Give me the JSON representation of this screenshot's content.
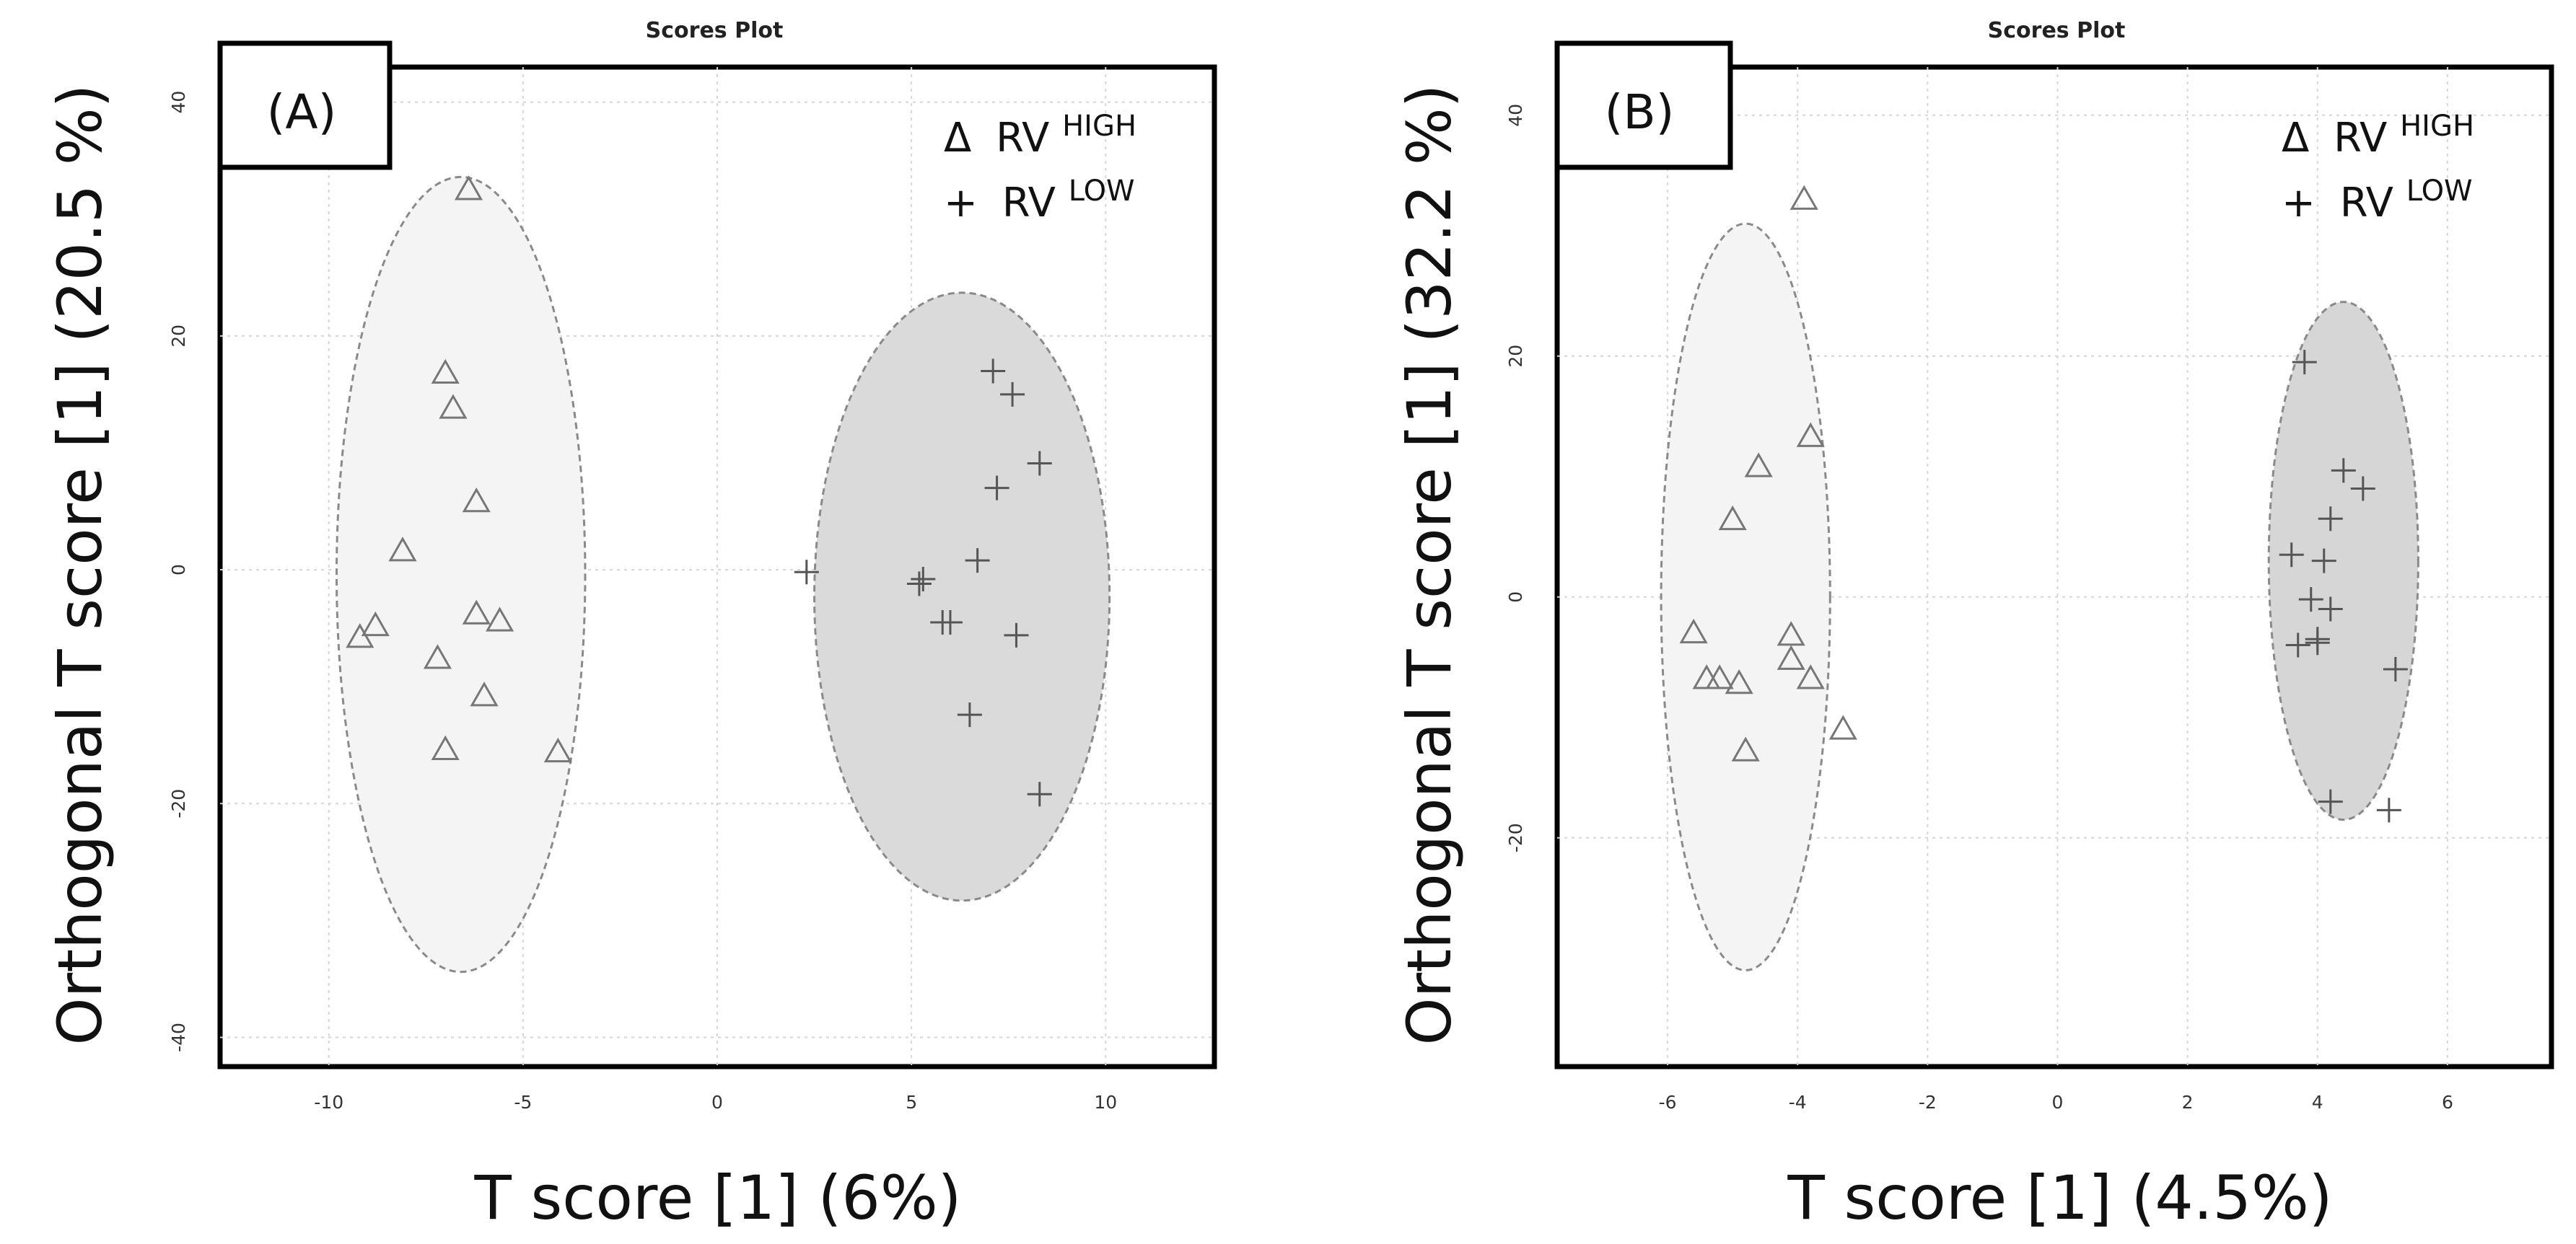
{
  "chart_data": [
    {
      "type": "scatter",
      "panel_label": "(A)",
      "title": "Scores Plot",
      "xlabel": "T score [1] (6%)",
      "ylabel": "Orthogonal T score [1] (20.5 %)",
      "xlim": [
        -12.8,
        12.8
      ],
      "ylim": [
        -42.5,
        43
      ],
      "xticks": [
        -10,
        -5,
        0,
        5,
        10
      ],
      "yticks": [
        -40,
        -20,
        0,
        20,
        40
      ],
      "legend": [
        {
          "marker": "Δ",
          "label": "RV",
          "sup": "HIGH"
        },
        {
          "marker": "+",
          "label": "RV",
          "sup": "LOW"
        }
      ],
      "series": [
        {
          "name": "RV HIGH",
          "marker": "triangle",
          "points": [
            [
              -6.4,
              32.5
            ],
            [
              -7.0,
              16.8
            ],
            [
              -6.8,
              13.8
            ],
            [
              -6.2,
              5.8
            ],
            [
              -8.1,
              1.6
            ],
            [
              -9.2,
              -5.8
            ],
            [
              -8.8,
              -4.8
            ],
            [
              -6.2,
              -3.8
            ],
            [
              -5.6,
              -4.4
            ],
            [
              -7.2,
              -7.6
            ],
            [
              -6.0,
              -10.8
            ],
            [
              -7.0,
              -15.4
            ],
            [
              -4.1,
              -15.6
            ]
          ],
          "ellipse": {
            "cx": -6.6,
            "cy": -0.4,
            "rx": 3.2,
            "ry": 34.0,
            "fill": "#f4f4f4"
          }
        },
        {
          "name": "RV LOW",
          "marker": "plus",
          "points": [
            [
              7.1,
              17.0
            ],
            [
              7.6,
              15.0
            ],
            [
              8.3,
              9.1
            ],
            [
              7.2,
              7.0
            ],
            [
              2.3,
              -0.2
            ],
            [
              5.2,
              -1.2
            ],
            [
              5.3,
              -0.8
            ],
            [
              6.7,
              0.8
            ],
            [
              5.8,
              -4.5
            ],
            [
              6.0,
              -4.5
            ],
            [
              7.7,
              -5.6
            ],
            [
              6.5,
              -12.4
            ],
            [
              8.3,
              -19.2
            ]
          ],
          "ellipse": {
            "cx": 6.3,
            "cy": -2.3,
            "rx": 3.8,
            "ry": 26.0,
            "fill": "#dadada"
          }
        }
      ]
    },
    {
      "type": "scatter",
      "panel_label": "(B)",
      "title": "Scores Plot",
      "xlabel": "T score [1] (4.5%)",
      "ylabel": "Orthogonal T score [1] (32.2 %)",
      "xlim": [
        -7.7,
        7.6
      ],
      "ylim": [
        -39,
        44
      ],
      "xticks": [
        -6,
        -4,
        -2,
        0,
        2,
        4,
        6
      ],
      "yticks": [
        -20,
        0,
        20,
        40
      ],
      "legend": [
        {
          "marker": "Δ",
          "label": "RV",
          "sup": "HIGH"
        },
        {
          "marker": "+",
          "label": "RV",
          "sup": "LOW"
        }
      ],
      "series": [
        {
          "name": "RV HIGH",
          "marker": "triangle",
          "points": [
            [
              -3.9,
              33.0
            ],
            [
              -3.8,
              13.3
            ],
            [
              -4.6,
              10.8
            ],
            [
              -5.0,
              6.4
            ],
            [
              -5.6,
              -3.0
            ],
            [
              -4.1,
              -3.2
            ],
            [
              -5.4,
              -6.8
            ],
            [
              -5.2,
              -6.8
            ],
            [
              -4.9,
              -7.2
            ],
            [
              -4.1,
              -5.2
            ],
            [
              -3.8,
              -6.8
            ],
            [
              -4.8,
              -12.8
            ],
            [
              -3.3,
              -11.0
            ]
          ],
          "ellipse": {
            "cx": -4.8,
            "cy": 0.0,
            "rx": 1.3,
            "ry": 31.0,
            "fill": "#f4f4f4"
          }
        },
        {
          "name": "RV LOW",
          "marker": "plus",
          "points": [
            [
              3.8,
              19.5
            ],
            [
              4.4,
              10.5
            ],
            [
              4.7,
              9.0
            ],
            [
              4.2,
              6.5
            ],
            [
              3.6,
              3.5
            ],
            [
              4.1,
              3.0
            ],
            [
              3.9,
              -0.2
            ],
            [
              4.2,
              -1.0
            ],
            [
              4.0,
              -3.5
            ],
            [
              3.7,
              -4.0
            ],
            [
              4.0,
              -3.8
            ],
            [
              5.2,
              -6.0
            ],
            [
              4.2,
              -17.0
            ],
            [
              5.1,
              -17.7
            ]
          ],
          "ellipse": {
            "cx": 4.4,
            "cy": 3.0,
            "rx": 1.15,
            "ry": 21.5,
            "fill": "#d6d6d6"
          }
        }
      ]
    }
  ]
}
